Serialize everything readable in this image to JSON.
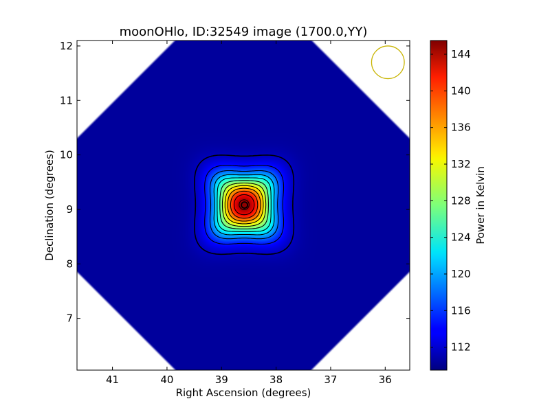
{
  "chart_data": {
    "type": "heatmap",
    "title": "moonOHlo, ID:32549 image (1700.0,YY)",
    "xlabel": "Right Ascension (degrees)",
    "ylabel": "Declination (degrees)",
    "xlim": [
      41.65,
      35.55
    ],
    "ylim": [
      6.05,
      12.1
    ],
    "x_ticks": [
      "41",
      "40",
      "39",
      "38",
      "37",
      "36"
    ],
    "x_tick_values": [
      41,
      40,
      39,
      38,
      37,
      36
    ],
    "y_ticks": [
      "7",
      "8",
      "9",
      "10",
      "11",
      "12"
    ],
    "y_tick_values": [
      7,
      8,
      9,
      10,
      11,
      12
    ],
    "colorbar": {
      "label": "Power in Kelvin",
      "min": 109.5,
      "max": 145.5,
      "ticks": [
        "112",
        "116",
        "120",
        "124",
        "128",
        "132",
        "136",
        "140",
        "144"
      ],
      "tick_values": [
        112,
        116,
        120,
        124,
        128,
        132,
        136,
        140,
        144
      ],
      "colormap": "jet"
    },
    "source": {
      "ra": 38.58,
      "dec": 9.08,
      "peak_kelvin": 145,
      "background_kelvin": 110.5,
      "marker": "black circle"
    },
    "field": {
      "shape": "diamond",
      "center_ra": 38.6,
      "center_dec": 9.08,
      "half_width_deg": 4.3
    },
    "contours": {
      "color": "#000000",
      "count": 12
    },
    "beam": {
      "ra": 35.95,
      "dec": 11.7,
      "color": "#c8b400"
    },
    "colors": {
      "background": "#00009a",
      "axes_face": "#ffffff"
    }
  }
}
